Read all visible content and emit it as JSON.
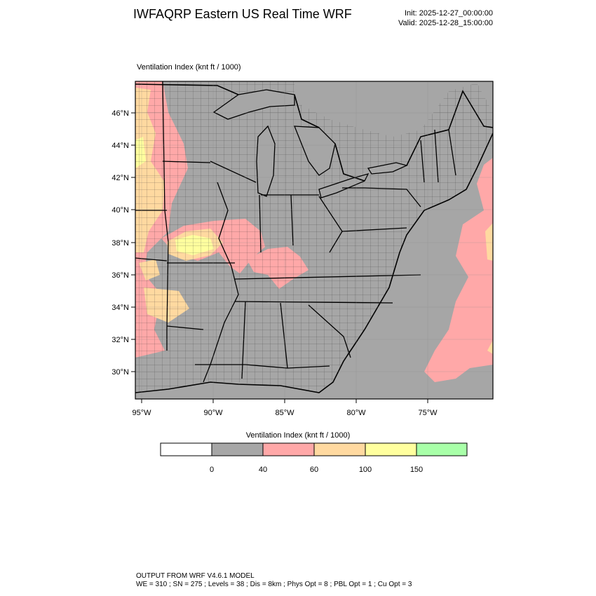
{
  "header": {
    "title": "IWFAQRP Eastern US Real Time WRF",
    "init": "Init: 2025-12-27_00:00:00",
    "valid": "Valid: 2025-12-28_15:00:00"
  },
  "panel": {
    "title": "Ventilation Index   (knt ft / 1000)"
  },
  "axes": {
    "lat_labels": [
      "46°N",
      "44°N",
      "42°N",
      "40°N",
      "38°N",
      "36°N",
      "34°N",
      "32°N",
      "30°N"
    ],
    "lon_labels": [
      "95°W",
      "90°W",
      "85°W",
      "80°W",
      "75°W"
    ]
  },
  "legend": {
    "title": "Ventilation Index  (knt ft / 1000)",
    "bins": [
      {
        "color": "#ffffff",
        "label": "0"
      },
      {
        "color": "#a6a6a6",
        "label": "40"
      },
      {
        "color": "#ffa8a8",
        "label": "60"
      },
      {
        "color": "#ffd9a0",
        "label": "100"
      },
      {
        "color": "#ffff9e",
        "label": "150"
      },
      {
        "color": "#a8ffa8",
        "label": ""
      }
    ]
  },
  "colors": {
    "gray": "#a6a6a6",
    "pink": "#ffa8a8",
    "orange": "#ffd9a0",
    "yellow": "#ffff9e",
    "green": "#a8ffa8"
  },
  "footer": {
    "line1": "OUTPUT FROM WRF V4.6.1 MODEL",
    "line2": "WE = 310 ; SN = 275 ; Levels = 38 ; Dis = 8km ; Phys Opt = 8 ; PBL Opt = 1 ; Cu Opt = 3"
  }
}
